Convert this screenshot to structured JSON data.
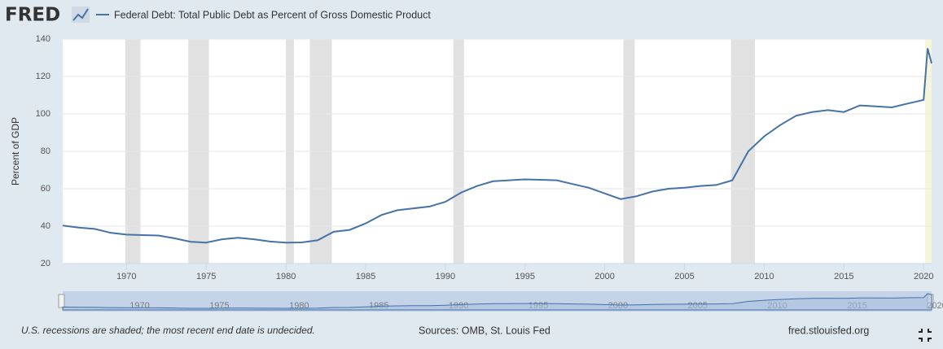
{
  "header": {
    "logo": "FRED"
  },
  "chart_data": {
    "type": "line",
    "series": [
      {
        "name": "Federal Debt: Total Public Debt as Percent of Gross Domestic Product",
        "color": "#4572a7",
        "x": [
          1966,
          1967,
          1968,
          1969,
          1970,
          1971,
          1972,
          1973,
          1974,
          1975,
          1976,
          1977,
          1978,
          1979,
          1980,
          1981,
          1982,
          1983,
          1984,
          1985,
          1986,
          1987,
          1988,
          1989,
          1990,
          1991,
          1992,
          1993,
          1994,
          1995,
          1996,
          1997,
          1998,
          1999,
          2000,
          2001,
          2002,
          2003,
          2004,
          2005,
          2006,
          2007,
          2008,
          2009,
          2010,
          2011,
          2012,
          2013,
          2014,
          2015,
          2016,
          2017,
          2018,
          2019,
          2020,
          2020.25,
          2020.5
        ],
        "values": [
          40.3,
          39.2,
          38.5,
          36.5,
          35.5,
          35.2,
          35,
          33.5,
          31.7,
          31.2,
          33,
          33.8,
          33,
          31.8,
          31.2,
          31.3,
          32.5,
          37,
          38,
          41.5,
          46,
          48.5,
          49.5,
          50.5,
          53,
          58,
          61.5,
          64,
          64.5,
          65,
          64.8,
          64.5,
          62.5,
          60.5,
          57.5,
          54.5,
          56,
          58.5,
          60,
          60.5,
          61.5,
          62,
          64.5,
          80,
          88,
          94,
          99,
          101,
          102,
          101,
          104.5,
          104,
          103.5,
          105.5,
          107.5,
          135,
          127
        ]
      }
    ],
    "shading": [
      {
        "start": 1969.92,
        "end": 1970.88,
        "color": "#e1e1e1"
      },
      {
        "start": 1973.88,
        "end": 1975.17,
        "color": "#e1e1e1"
      },
      {
        "start": 1980.0,
        "end": 1980.5,
        "color": "#e1e1e1"
      },
      {
        "start": 1981.5,
        "end": 1982.88,
        "color": "#e1e1e1"
      },
      {
        "start": 1990.5,
        "end": 1991.17,
        "color": "#e1e1e1"
      },
      {
        "start": 2001.17,
        "end": 2001.88,
        "color": "#e1e1e1"
      },
      {
        "start": 2007.92,
        "end": 2009.42,
        "color": "#e1e1e1"
      },
      {
        "start": 2020.08,
        "end": 2020.5,
        "color": "#f5f5dc"
      }
    ],
    "xlim": [
      1966,
      2020.5
    ],
    "xticks": [
      1970,
      1975,
      1980,
      1985,
      1990,
      1995,
      2000,
      2005,
      2010,
      2015,
      2020
    ],
    "ylim": [
      20,
      140
    ],
    "yticks": [
      20,
      40,
      60,
      80,
      100,
      120,
      140
    ],
    "ylabel": "Percent of GDP",
    "grid": true
  },
  "footer": {
    "note": "U.S. recessions are shaded; the most recent end date is undecided.",
    "source": "Sources: OMB, St. Louis Fed",
    "url": "fred.stlouisfed.org"
  }
}
